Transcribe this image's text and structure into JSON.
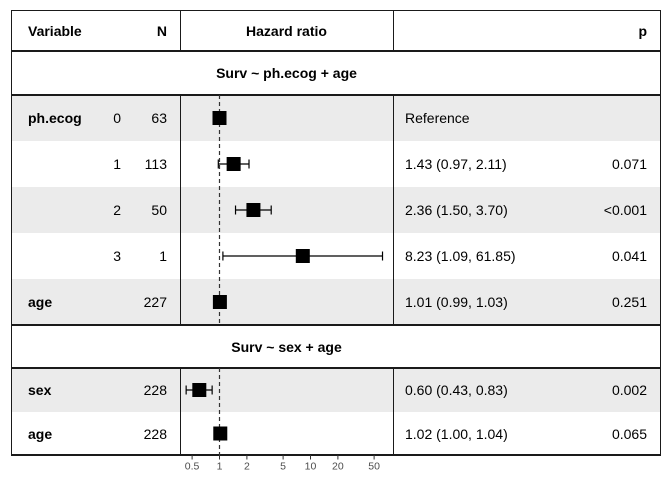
{
  "header": {
    "variable": "Variable",
    "n": "N",
    "hazard_ratio": "Hazard ratio",
    "p": "p"
  },
  "sections": [
    {
      "title": "Surv ~ ph.ecog + age",
      "rows": [
        {
          "variable": "ph.ecog",
          "level": "0",
          "n": "63",
          "estimate": "Reference",
          "p": ""
        },
        {
          "variable": "",
          "level": "1",
          "n": "113",
          "estimate": "1.43 (0.97, 2.11)",
          "p": "0.071"
        },
        {
          "variable": "",
          "level": "2",
          "n": "50",
          "estimate": "2.36 (1.50, 3.70)",
          "p": "<0.001"
        },
        {
          "variable": "",
          "level": "3",
          "n": "1",
          "estimate": "8.23 (1.09, 61.85)",
          "p": "0.041"
        },
        {
          "variable": "age",
          "level": "",
          "n": "227",
          "estimate": "1.01 (0.99, 1.03)",
          "p": "0.251"
        }
      ]
    },
    {
      "title": "Surv ~ sex + age",
      "rows": [
        {
          "variable": "sex",
          "level": "",
          "n": "228",
          "estimate": "0.60 (0.43, 0.83)",
          "p": "0.002"
        },
        {
          "variable": "age",
          "level": "",
          "n": "228",
          "estimate": "1.02 (1.00, 1.04)",
          "p": "0.065"
        }
      ]
    }
  ],
  "chart_data": {
    "type": "scatter",
    "subtype": "forest-plot",
    "title": "Hazard ratio",
    "x_scale": "log10",
    "x_ticks": [
      0.5,
      1,
      2,
      5,
      10,
      20,
      50
    ],
    "x_range": [
      0.4,
      70
    ],
    "reference_line": 1,
    "series": [
      {
        "label": "ph.ecog 0",
        "section": 0,
        "row": 0,
        "hr": 1.0,
        "lo": null,
        "hi": null
      },
      {
        "label": "ph.ecog 1",
        "section": 0,
        "row": 1,
        "hr": 1.43,
        "lo": 0.97,
        "hi": 2.11
      },
      {
        "label": "ph.ecog 2",
        "section": 0,
        "row": 2,
        "hr": 2.36,
        "lo": 1.5,
        "hi": 3.7
      },
      {
        "label": "ph.ecog 3",
        "section": 0,
        "row": 3,
        "hr": 8.23,
        "lo": 1.09,
        "hi": 61.85
      },
      {
        "label": "age",
        "section": 0,
        "row": 4,
        "hr": 1.01,
        "lo": 0.99,
        "hi": 1.03
      },
      {
        "label": "sex",
        "section": 1,
        "row": 5,
        "hr": 0.6,
        "lo": 0.43,
        "hi": 0.83
      },
      {
        "label": "age",
        "section": 1,
        "row": 6,
        "hr": 1.02,
        "lo": 1.0,
        "hi": 1.04
      }
    ]
  },
  "colors": {
    "row_shade": "#ebebeb",
    "border": "#1a1a1a",
    "marker": "#000000",
    "error_bar": "#000000",
    "reference_line": "#333333",
    "axis_text": "#4d4d4d",
    "axis_tick": "#333333"
  }
}
